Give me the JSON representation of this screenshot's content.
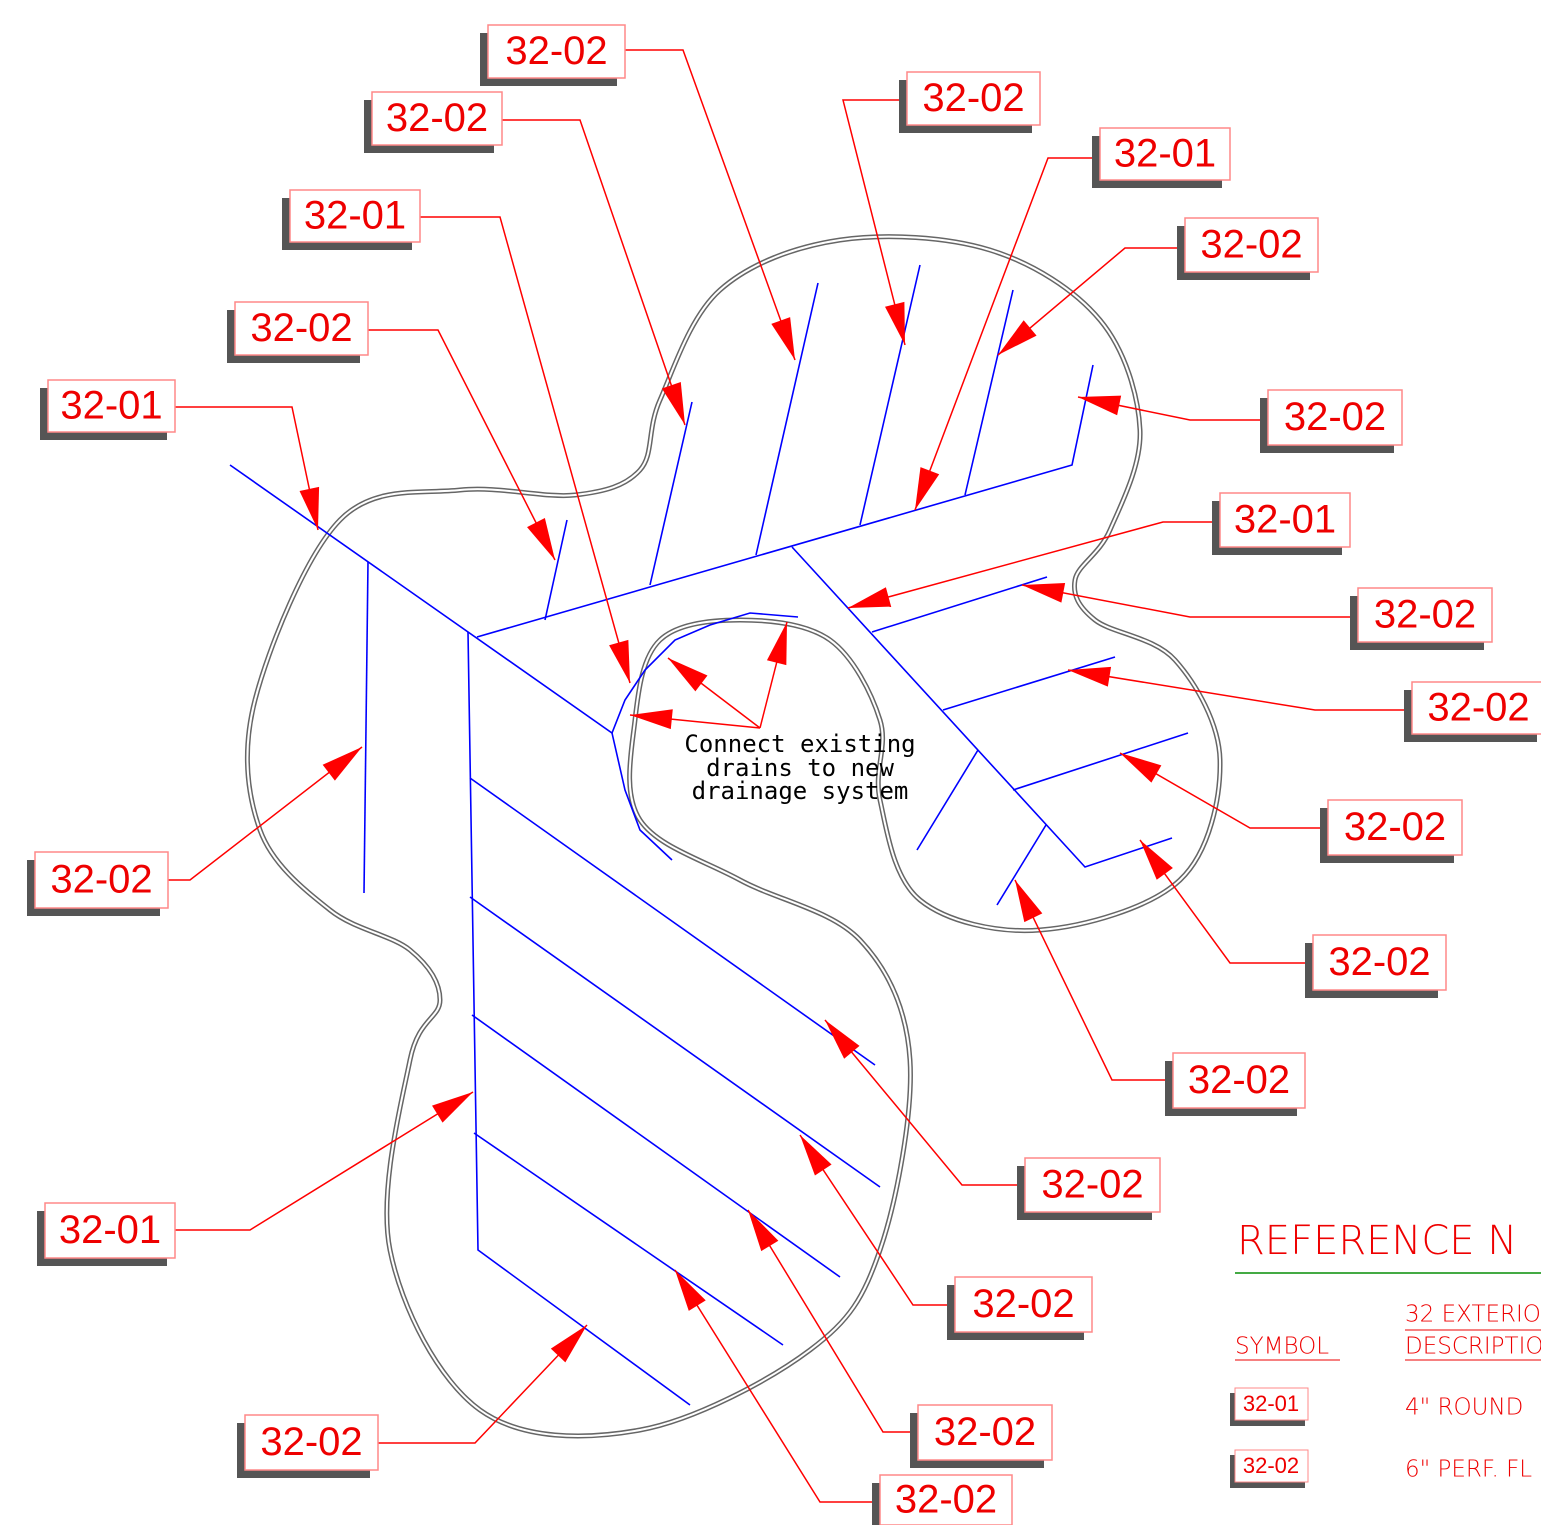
{
  "tags": [
    "32-02",
    "32-02",
    "32-02",
    "32-01",
    "32-01",
    "32-02",
    "32-02",
    "32-01",
    "32-02",
    "32-01",
    "32-02",
    "32-02",
    "32-02",
    "32-02",
    "32-02",
    "32-02",
    "32-02",
    "32-01",
    "32-02",
    "32-02",
    "32-02",
    "32-02"
  ],
  "note": [
    "Connect existing",
    "drains to new",
    "drainage system"
  ],
  "reference": {
    "title": "REFERENCE N",
    "section": "32 EXTERIO",
    "symbol_header": "SYMBOL",
    "description_header": "DESCRIPTIO",
    "rows": [
      [
        "32-01",
        "4\" ROUND"
      ],
      [
        "32-02",
        "6\" PERF. FL"
      ]
    ]
  }
}
